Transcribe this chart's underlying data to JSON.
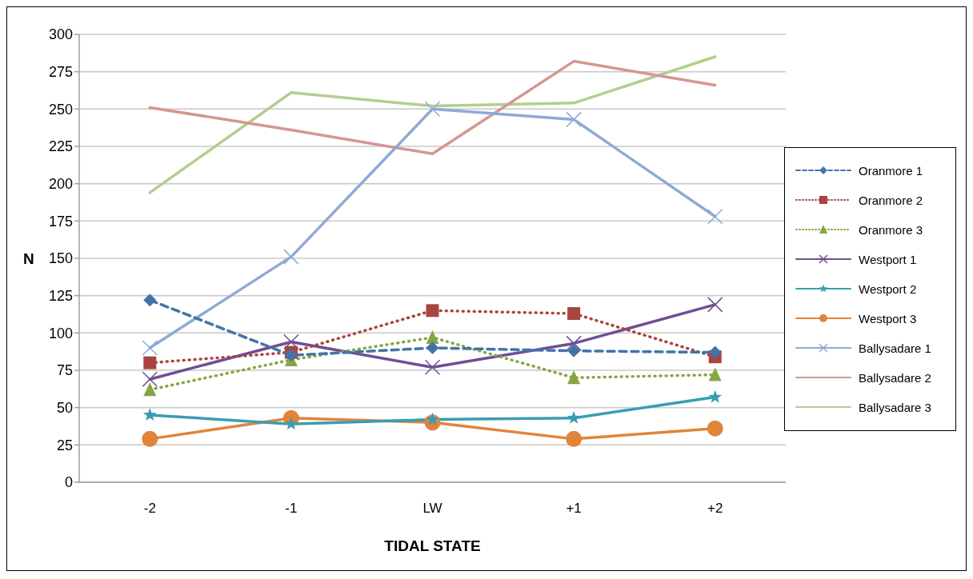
{
  "chart_data": {
    "type": "line",
    "xlabel": "TIDAL STATE",
    "ylabel": "N",
    "categories": [
      "-2",
      "-1",
      "LW",
      "+1",
      "+2"
    ],
    "ylim": [
      0,
      300
    ],
    "yticks": [
      0,
      25,
      50,
      75,
      100,
      125,
      150,
      175,
      200,
      225,
      250,
      275,
      300
    ],
    "grid": "y",
    "legend": "right",
    "series": [
      {
        "name": "Oranmore 1",
        "color": "#4274aa",
        "marker": "diamond",
        "line_style": "dashed",
        "values": [
          122,
          85,
          90,
          88,
          87
        ]
      },
      {
        "name": "Oranmore 2",
        "color": "#a94441",
        "marker": "square",
        "line_style": "dotted",
        "values": [
          80,
          87,
          115,
          113,
          84
        ]
      },
      {
        "name": "Oranmore 3",
        "color": "#86a544",
        "marker": "triangle",
        "line_style": "dotted",
        "values": [
          62,
          82,
          97,
          70,
          72
        ]
      },
      {
        "name": "Westport 1",
        "color": "#6e4f94",
        "marker": "cross",
        "line_style": "solid",
        "values": [
          69,
          94,
          77,
          93,
          119
        ]
      },
      {
        "name": "Westport 2",
        "color": "#3a9cb4",
        "marker": "star",
        "line_style": "solid",
        "values": [
          45,
          39,
          42,
          43,
          57
        ]
      },
      {
        "name": "Westport 3",
        "color": "#e0843a",
        "marker": "circle",
        "line_style": "solid",
        "values": [
          29,
          43,
          40,
          29,
          36
        ]
      },
      {
        "name": "Ballysadare 1",
        "color": "#8fa9d6",
        "marker": "cross",
        "line_style": "solid",
        "values": [
          90,
          151,
          250,
          243,
          178
        ]
      },
      {
        "name": "Ballysadare 2",
        "color": "#d69593",
        "marker": "none",
        "line_style": "solid",
        "values": [
          251,
          236,
          220,
          282,
          266
        ]
      },
      {
        "name": "Ballysadare 3",
        "color": "#b2cf8c",
        "marker": "none",
        "line_style": "solid",
        "values": [
          194,
          261,
          252,
          254,
          285
        ]
      }
    ]
  }
}
